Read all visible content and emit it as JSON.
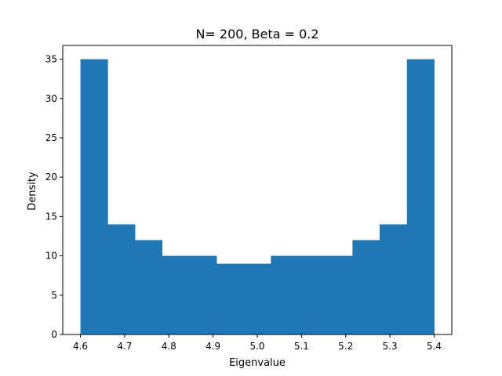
{
  "chart_data": {
    "type": "bar",
    "title": "N= 200, Beta = 0.2",
    "xlabel": "Eigenvalue",
    "ylabel": "Density",
    "bin_edges": [
      4.6,
      4.6615,
      4.7231,
      4.7846,
      4.8462,
      4.9077,
      4.9692,
      5.0308,
      5.0923,
      5.1538,
      5.2154,
      5.2769,
      5.3385,
      5.4
    ],
    "values": [
      35,
      14,
      12,
      10,
      10,
      9,
      9,
      10,
      10,
      10,
      12,
      14,
      35
    ],
    "xlim": [
      4.56,
      5.44
    ],
    "ylim": [
      0,
      36.75
    ],
    "xticks": [
      4.6,
      4.7,
      4.8,
      4.9,
      5.0,
      5.1,
      5.2,
      5.3,
      5.4
    ],
    "xtick_labels": [
      "4.6",
      "4.7",
      "4.8",
      "4.9",
      "5.0",
      "5.1",
      "5.2",
      "5.3",
      "5.4"
    ],
    "yticks": [
      0,
      5,
      10,
      15,
      20,
      25,
      30,
      35
    ],
    "ytick_labels": [
      "0",
      "5",
      "10",
      "15",
      "20",
      "25",
      "30",
      "35"
    ],
    "grid": false,
    "legend": "none",
    "bar_color": "#1f77b4"
  }
}
